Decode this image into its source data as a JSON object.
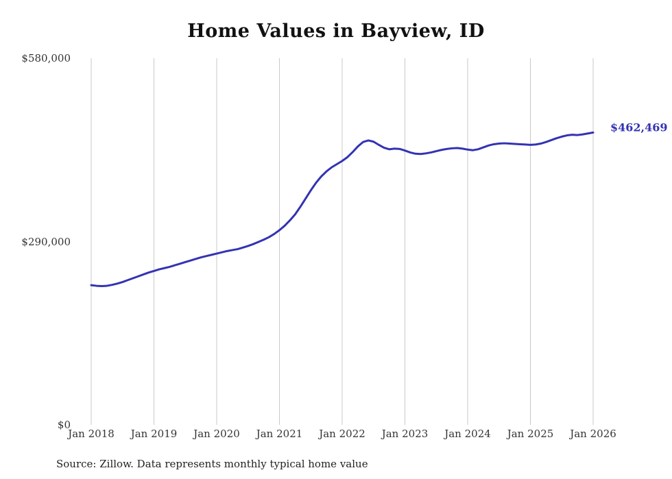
{
  "title": "Home Values in Bayview, ID",
  "source_note": "Source: Zillow. Data represents monthly typical home value",
  "end_value_label": "$462,469",
  "colors": {
    "line": "#3333b3",
    "end_label": "#3333b3",
    "grid": "#c9c9c9",
    "tick_text": "#333333"
  },
  "chart_data": {
    "type": "line",
    "title": "Home Values in Bayview, ID",
    "xlabel": "",
    "ylabel": "",
    "ylim": [
      0,
      580000
    ],
    "grid": "vertical-only",
    "legend": "none",
    "y_ticks": [
      {
        "value": 0,
        "label": "$0"
      },
      {
        "value": 290000,
        "label": "$290,000"
      },
      {
        "value": 580000,
        "label": "$580,000"
      }
    ],
    "x_ticks": [
      "Jan 2018",
      "Jan 2019",
      "Jan 2020",
      "Jan 2021",
      "Jan 2022",
      "Jan 2023",
      "Jan 2024",
      "Jan 2025",
      "Jan 2026"
    ],
    "series_name": "Typical home value (monthly)",
    "x_start": "Jan 2018",
    "x_end": "Jan 2026",
    "final_value": 462469,
    "values": [
      221000,
      220000,
      219500,
      220000,
      221500,
      223500,
      226000,
      229000,
      232000,
      235000,
      238000,
      241000,
      243500,
      246000,
      248000,
      250000,
      252500,
      255000,
      257500,
      260000,
      262500,
      265000,
      267000,
      269000,
      271000,
      273000,
      275000,
      276500,
      278000,
      280500,
      283000,
      286000,
      289500,
      293000,
      297000,
      302000,
      308000,
      315000,
      323500,
      333000,
      345000,
      358000,
      371000,
      383000,
      393000,
      401000,
      407500,
      412500,
      417500,
      423500,
      431500,
      440500,
      447500,
      450000,
      448000,
      443000,
      438500,
      436000,
      437000,
      436500,
      434000,
      431000,
      429000,
      428500,
      429500,
      431000,
      433000,
      435000,
      436500,
      437500,
      438000,
      437000,
      435500,
      434500,
      436000,
      439000,
      442000,
      444000,
      445000,
      445500,
      445000,
      444500,
      444000,
      443500,
      443000,
      443500,
      445000,
      447500,
      450500,
      453500,
      456000,
      458000,
      459000,
      458500,
      459500,
      461000,
      462469
    ]
  }
}
